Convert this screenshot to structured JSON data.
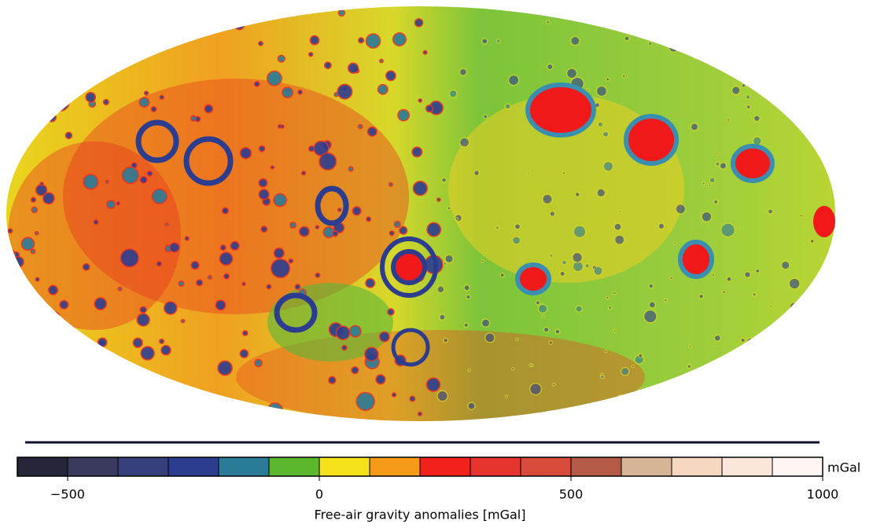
{
  "colorbar": {
    "unit": "mGal",
    "label": "Free-air gravity anomalies [mGal]",
    "range": [
      -600,
      1000
    ],
    "ticks": [
      {
        "value": -500,
        "label": "−500"
      },
      0,
      500,
      1000
    ],
    "colors": [
      "#26263a",
      "#393a5e",
      "#363f7c",
      "#2c3d90",
      "#2a7a98",
      "#5cb82e",
      "#f5e21a",
      "#f59a18",
      "#f0221a",
      "#e8342e",
      "#d84a3a",
      "#b65a48",
      "#d6b596",
      "#f5d6be",
      "#fbe6dc",
      "#fff6f3"
    ]
  }
}
